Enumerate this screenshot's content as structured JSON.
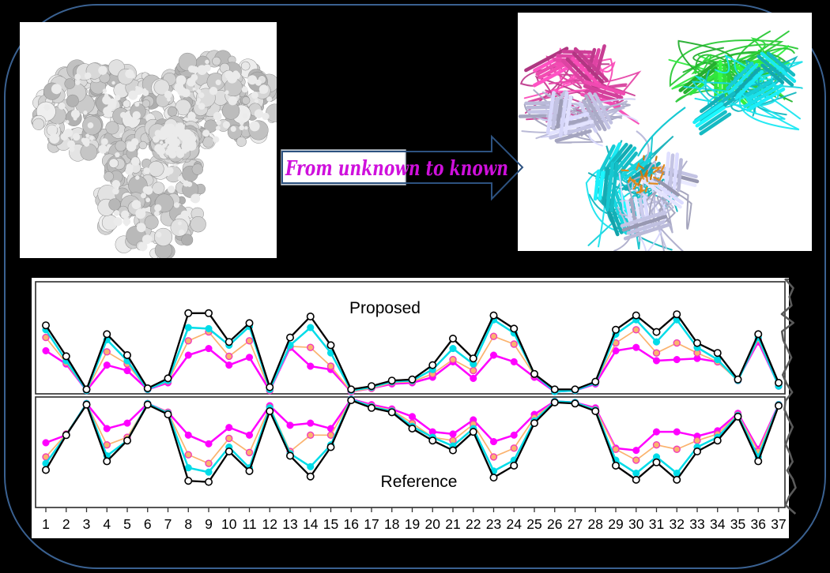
{
  "arrow": {
    "label": "From unknown to known",
    "text_color": "#cf10dc",
    "outline_color": "#2d5280",
    "textbox_border_color": "#b9c2ce"
  },
  "figure": {
    "left_panel_content": "antibody-molecular-surface-gray",
    "right_panel_content": "antibody-ribbon-cartoon-colored",
    "surface_color": "#cccccc",
    "ribbon_colors": {
      "pink": "#d943a0",
      "green": "#2bc937",
      "cyan": "#17c9d2",
      "lavender": "#bdbddc",
      "glycan_orange": "#e08a1e"
    }
  },
  "colors": {
    "background": "#000000",
    "frame_border": "#3a6191",
    "chart_background": "#ffffff",
    "torn_edge": "#5a5a5a"
  },
  "chart_data": {
    "type": "line",
    "mirrored_panels": true,
    "title": "",
    "xlabel": "",
    "ylabel": "",
    "grid": false,
    "legend": "none",
    "ylim": [
      0,
      1
    ],
    "x": [
      1,
      2,
      3,
      4,
      5,
      6,
      7,
      8,
      9,
      10,
      11,
      12,
      13,
      14,
      15,
      16,
      17,
      18,
      19,
      20,
      21,
      22,
      23,
      24,
      25,
      26,
      27,
      28,
      29,
      30,
      31,
      32,
      33,
      34,
      35,
      36,
      37
    ],
    "panels": [
      {
        "label": "Proposed",
        "position": "top",
        "series": [
          {
            "name": "black-open-circle",
            "color": "#000000",
            "marker": "open-circle",
            "values": [
              0.62,
              0.34,
              0.04,
              0.54,
              0.35,
              0.05,
              0.14,
              0.73,
              0.73,
              0.47,
              0.64,
              0.06,
              0.51,
              0.7,
              0.44,
              0.04,
              0.07,
              0.12,
              0.13,
              0.26,
              0.5,
              0.32,
              0.71,
              0.59,
              0.18,
              0.04,
              0.04,
              0.11,
              0.58,
              0.71,
              0.56,
              0.72,
              0.46,
              0.37,
              0.13,
              0.54,
              0.1
            ]
          },
          {
            "name": "cyan",
            "color": "#00dce8",
            "marker": "filled-circle",
            "values": [
              0.58,
              0.3,
              0.03,
              0.49,
              0.3,
              0.04,
              0.12,
              0.6,
              0.59,
              0.44,
              0.61,
              0.04,
              0.44,
              0.6,
              0.37,
              0.03,
              0.06,
              0.11,
              0.12,
              0.22,
              0.41,
              0.27,
              0.67,
              0.55,
              0.18,
              0.02,
              0.03,
              0.1,
              0.54,
              0.67,
              0.47,
              0.67,
              0.42,
              0.31,
              0.12,
              0.51,
              0.07
            ]
          },
          {
            "name": "orange",
            "color": "#fbb36e",
            "marker": "filled-circle-magenta-ring",
            "values": [
              0.51,
              0.28,
              0.03,
              0.38,
              0.27,
              0.04,
              0.11,
              0.48,
              0.56,
              0.34,
              0.48,
              0.03,
              0.43,
              0.42,
              0.25,
              0.02,
              0.05,
              0.1,
              0.11,
              0.18,
              0.31,
              0.21,
              0.52,
              0.45,
              0.17,
              0.03,
              0.03,
              0.1,
              0.46,
              0.58,
              0.37,
              0.46,
              0.37,
              0.29,
              0.12,
              0.49,
              0.07
            ]
          },
          {
            "name": "magenta",
            "color": "#ff00ff",
            "marker": "filled-circle",
            "values": [
              0.39,
              0.27,
              0.03,
              0.26,
              0.21,
              0.04,
              0.1,
              0.35,
              0.41,
              0.26,
              0.33,
              0.03,
              0.42,
              0.25,
              0.22,
              0.02,
              0.05,
              0.09,
              0.1,
              0.15,
              0.29,
              0.14,
              0.35,
              0.29,
              0.15,
              0.02,
              0.03,
              0.09,
              0.39,
              0.42,
              0.3,
              0.31,
              0.32,
              0.29,
              0.13,
              0.47,
              0.08
            ]
          }
        ]
      },
      {
        "label": "Reference",
        "position": "bottom",
        "series": [
          {
            "name": "black-open-circle",
            "color": "#000000",
            "marker": "open-circle",
            "values": [
              0.67,
              0.35,
              0.07,
              0.59,
              0.4,
              0.07,
              0.16,
              0.77,
              0.78,
              0.5,
              0.68,
              0.13,
              0.54,
              0.73,
              0.46,
              0.03,
              0.1,
              0.14,
              0.29,
              0.4,
              0.49,
              0.32,
              0.74,
              0.63,
              0.24,
              0.05,
              0.06,
              0.13,
              0.63,
              0.76,
              0.6,
              0.76,
              0.5,
              0.4,
              0.18,
              0.59,
              0.08
            ]
          },
          {
            "name": "cyan",
            "color": "#00dce8",
            "marker": "filled-circle",
            "values": [
              0.61,
              0.35,
              0.06,
              0.54,
              0.4,
              0.06,
              0.15,
              0.65,
              0.69,
              0.46,
              0.65,
              0.1,
              0.52,
              0.64,
              0.44,
              0.02,
              0.09,
              0.13,
              0.27,
              0.37,
              0.45,
              0.29,
              0.68,
              0.58,
              0.22,
              0.04,
              0.05,
              0.12,
              0.58,
              0.7,
              0.55,
              0.7,
              0.46,
              0.37,
              0.17,
              0.55,
              0.07
            ]
          },
          {
            "name": "orange",
            "color": "#fbb36e",
            "marker": "filled-circle-magenta-ring",
            "values": [
              0.55,
              0.34,
              0.06,
              0.44,
              0.37,
              0.06,
              0.14,
              0.53,
              0.61,
              0.38,
              0.51,
              0.09,
              0.5,
              0.35,
              0.35,
              0.02,
              0.08,
              0.12,
              0.24,
              0.37,
              0.4,
              0.25,
              0.55,
              0.47,
              0.19,
              0.04,
              0.05,
              0.11,
              0.48,
              0.58,
              0.44,
              0.48,
              0.4,
              0.34,
              0.16,
              0.5,
              0.07
            ]
          },
          {
            "name": "magenta",
            "color": "#ff00ff",
            "marker": "filled-circle",
            "values": [
              0.42,
              0.35,
              0.06,
              0.29,
              0.24,
              0.06,
              0.14,
              0.35,
              0.43,
              0.28,
              0.35,
              0.08,
              0.26,
              0.24,
              0.29,
              0.02,
              0.07,
              0.11,
              0.18,
              0.32,
              0.34,
              0.21,
              0.41,
              0.35,
              0.16,
              0.04,
              0.05,
              0.1,
              0.47,
              0.49,
              0.32,
              0.32,
              0.36,
              0.31,
              0.15,
              0.48,
              0.07
            ]
          }
        ]
      }
    ]
  }
}
